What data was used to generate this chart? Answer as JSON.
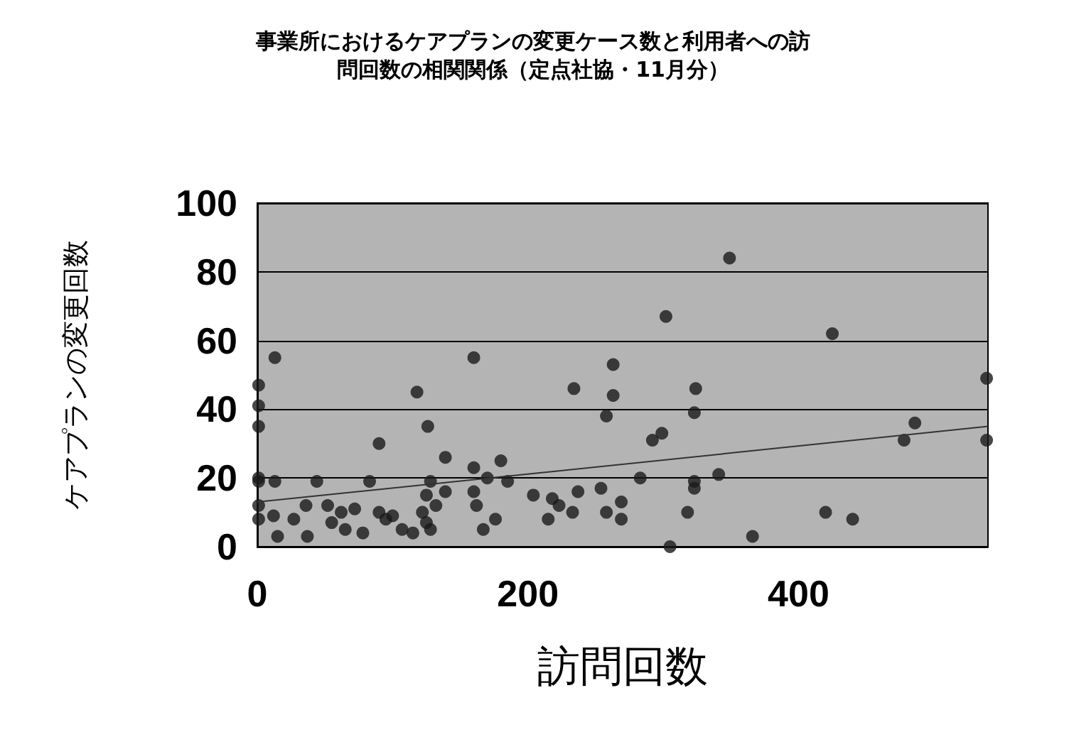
{
  "chart_data": {
    "type": "scatter",
    "title": "事業所におけるケアプランの変更ケース数と利用者への訪問回数の相関関係（定点社協・11月分）",
    "xlabel": "訪問回数",
    "ylabel": "ケアプランの変更回数",
    "xlim": [
      0,
      540
    ],
    "xticks": [
      0,
      200,
      400
    ],
    "ylim": [
      0,
      100
    ],
    "yticks": [
      0,
      20,
      40,
      60,
      80,
      100
    ],
    "grid": "y",
    "marker": "circle",
    "series": [
      {
        "color": "#1a1a1a",
        "x": [
          13,
          160,
          1,
          118,
          1,
          1,
          126,
          90,
          139,
          180,
          160,
          1,
          1,
          13,
          44,
          83,
          128,
          139,
          170,
          185,
          160,
          162,
          125,
          1,
          1,
          12,
          15,
          27,
          36,
          37,
          52,
          55,
          62,
          65,
          72,
          78,
          90,
          95,
          100,
          107,
          115,
          122,
          125,
          128,
          132,
          167,
          176,
          349,
          302,
          263,
          234,
          263,
          324,
          323,
          258,
          299,
          292,
          283,
          341,
          323,
          323,
          204,
          218,
          215,
          223,
          233,
          237,
          254,
          269,
          258,
          269,
          318,
          305,
          366,
          425,
          539,
          486,
          478,
          539,
          420,
          440
        ],
        "values": [
          55,
          55,
          47,
          45,
          41,
          35,
          35,
          30,
          26,
          25,
          23,
          20,
          19,
          19,
          19,
          19,
          19,
          16,
          20,
          19,
          16,
          12,
          15,
          12,
          8,
          9,
          3,
          8,
          12,
          3,
          12,
          7,
          10,
          5,
          11,
          4,
          10,
          8,
          9,
          5,
          4,
          10,
          7,
          5,
          12,
          5,
          8,
          84,
          67,
          53,
          46,
          44,
          46,
          39,
          38,
          33,
          31,
          20,
          21,
          19,
          17,
          15,
          14,
          8,
          12,
          10,
          16,
          17,
          13,
          10,
          8,
          10,
          0,
          3,
          62,
          49,
          36,
          31,
          31,
          10,
          8
        ]
      },
      {
        "type": "line",
        "color": "#333333",
        "x": [
          0,
          540
        ],
        "values": [
          13,
          35
        ],
        "marker": "none"
      }
    ]
  }
}
